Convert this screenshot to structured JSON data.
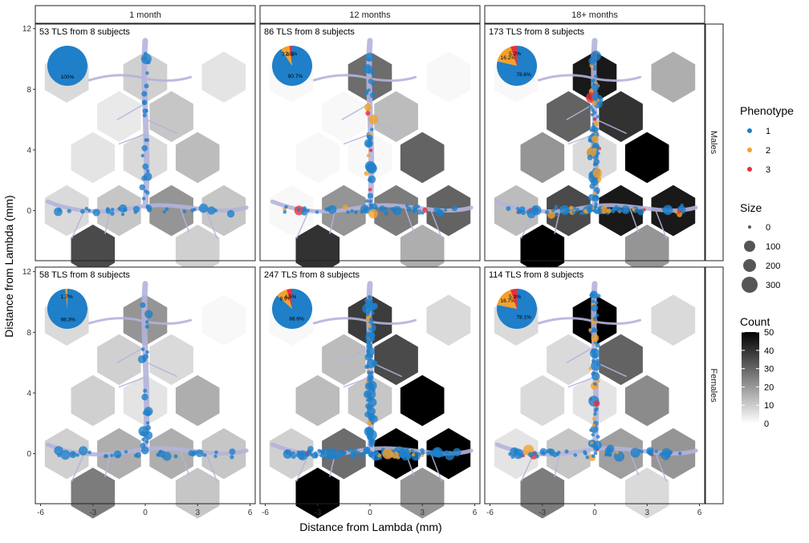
{
  "chart_data": {
    "type": "scatter",
    "title": "",
    "xlabel": "Distance from Lambda (mm)",
    "ylabel": "Distance from Lambda (mm)",
    "xlim": [
      -6.3,
      6.3
    ],
    "ylim": [
      -3.3,
      12.3
    ],
    "xticks": [
      -6,
      -3,
      0,
      3,
      6
    ],
    "xtick_labels": [
      "-6",
      "-3",
      "0",
      "3",
      "6"
    ],
    "yticks": [
      0,
      4,
      8,
      12
    ],
    "ytick_labels": [
      "0",
      "4",
      "8",
      "12"
    ],
    "col_labels": [
      "1 month",
      "12 months",
      "18+ months"
    ],
    "row_labels": [
      "Males",
      "Females"
    ],
    "legend": {
      "phenotype_title": "Phenotype",
      "phenotypes": [
        {
          "label": "1",
          "color": "#1f7fc9"
        },
        {
          "label": "2",
          "color": "#f2a12e"
        },
        {
          "label": "3",
          "color": "#e8303a"
        }
      ],
      "size_title": "Size",
      "sizes": [
        "0",
        "100",
        "200",
        "300"
      ],
      "count_title": "Count",
      "count_ticks": [
        "50",
        "40",
        "30",
        "20",
        "10",
        "0"
      ],
      "count_range": [
        0,
        50
      ]
    },
    "panels": [
      {
        "row": 0,
        "col": 0,
        "note": "53 TLS from 8 subjects",
        "pie": [
          {
            "phenotype": "1",
            "pct": 100,
            "label": "100%"
          }
        ],
        "hex_counts": [
          6,
          8,
          4,
          3,
          10,
          4,
          6,
          12,
          6,
          10,
          20,
          10,
          35,
          8
        ],
        "n_points": 53
      },
      {
        "row": 0,
        "col": 1,
        "note": "86 TLS from 8 subjects",
        "pie": [
          {
            "phenotype": "1",
            "pct": 90.7,
            "label": "90.7%"
          },
          {
            "phenotype": "2",
            "pct": 7.0,
            "label": "7.0%"
          },
          {
            "phenotype": "3",
            "pct": 2.3,
            "label": "2.3%"
          }
        ],
        "hex_counts": [
          0,
          28,
          0,
          0,
          12,
          0,
          0,
          30,
          0,
          20,
          25,
          30,
          40,
          15
        ],
        "n_points": 86
      },
      {
        "row": 0,
        "col": 2,
        "note": "173 TLS from 8 subjects",
        "pie": [
          {
            "phenotype": "1",
            "pct": 78.6,
            "label": "78.6%"
          },
          {
            "phenotype": "2",
            "pct": 16.2,
            "label": "16.2%"
          },
          {
            "phenotype": "3",
            "pct": 5.2,
            "label": "5.2%"
          }
        ],
        "hex_counts": [
          0,
          45,
          15,
          30,
          40,
          20,
          6,
          55,
          12,
          35,
          45,
          45,
          50,
          20
        ],
        "n_points": 173
      },
      {
        "row": 1,
        "col": 0,
        "note": "58 TLS from 8 subjects",
        "pie": [
          {
            "phenotype": "1",
            "pct": 98.3,
            "label": "98.3%"
          },
          {
            "phenotype": "2",
            "pct": 1.7,
            "label": "1.7%"
          }
        ],
        "hex_counts": [
          6,
          20,
          0,
          8,
          6,
          8,
          4,
          15,
          8,
          15,
          15,
          10,
          25,
          10
        ],
        "n_points": 58
      },
      {
        "row": 1,
        "col": 1,
        "note": "247 TLS from 8 subjects",
        "pie": [
          {
            "phenotype": "1",
            "pct": 86.6,
            "label": "86.6%"
          },
          {
            "phenotype": "2",
            "pct": 8.9,
            "label": "8.9%"
          },
          {
            "phenotype": "3",
            "pct": 4.5,
            "label": "4.5%"
          }
        ],
        "hex_counts": [
          0,
          38,
          6,
          12,
          35,
          12,
          10,
          50,
          8,
          28,
          55,
          58,
          50,
          20
        ],
        "n_points": 247
      },
      {
        "row": 1,
        "col": 2,
        "note": "114 TLS from 8 subjects",
        "pie": [
          {
            "phenotype": "1",
            "pct": 78.1,
            "label": "78.1%"
          },
          {
            "phenotype": "2",
            "pct": 16.7,
            "label": "16.7%"
          },
          {
            "phenotype": "3",
            "pct": 5.3,
            "label": "5.3%"
          }
        ],
        "hex_counts": [
          6,
          55,
          6,
          6,
          30,
          6,
          4,
          22,
          4,
          10,
          18,
          20,
          25,
          6
        ],
        "n_points": 114
      }
    ]
  }
}
